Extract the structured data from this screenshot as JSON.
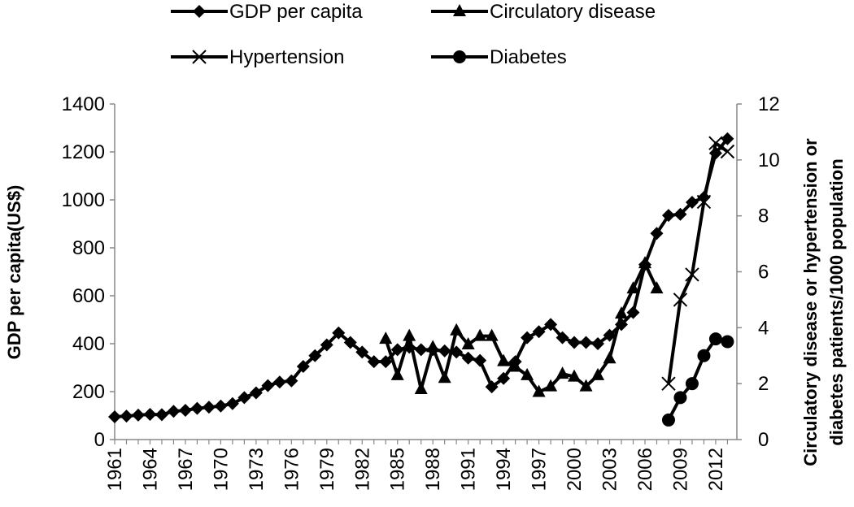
{
  "chart_data": {
    "type": "line",
    "x_ticks": [
      "1961",
      "1964",
      "1967",
      "1970",
      "1973",
      "1976",
      "1979",
      "1982",
      "1985",
      "1988",
      "1991",
      "1994",
      "1997",
      "2000",
      "2003",
      "2006",
      "2009",
      "2012"
    ],
    "y_left": {
      "label": "GDP per capita(US$)",
      "range": [
        0,
        1400
      ],
      "ticks": [
        "0",
        "200",
        "400",
        "600",
        "800",
        "1000",
        "1200",
        "1400"
      ]
    },
    "y_right": {
      "label_line1": "Circulatory  disease or hypertension or",
      "label_line2": "diabetes patients/1000 population",
      "range": [
        0,
        12
      ],
      "ticks": [
        "0",
        "2",
        "4",
        "6",
        "8",
        "10",
        "12"
      ]
    },
    "grid": false,
    "legend_position": "top",
    "series": [
      {
        "name": "GDP per capita",
        "marker": "diamond",
        "axis": "left",
        "x": [
          1961,
          1962,
          1963,
          1964,
          1965,
          1966,
          1967,
          1968,
          1969,
          1970,
          1971,
          1972,
          1973,
          1974,
          1975,
          1976,
          1977,
          1978,
          1979,
          1980,
          1981,
          1982,
          1983,
          1984,
          1985,
          1986,
          1987,
          1988,
          1989,
          1990,
          1991,
          1992,
          1993,
          1994,
          1995,
          1996,
          1997,
          1998,
          1999,
          2000,
          2001,
          2002,
          2003,
          2004,
          2005,
          2006,
          2007,
          2008,
          2009,
          2010,
          2011,
          2012,
          2013
        ],
        "y": [
          95,
          98,
          102,
          105,
          104,
          118,
          122,
          130,
          135,
          140,
          150,
          175,
          195,
          225,
          240,
          245,
          305,
          350,
          395,
          445,
          405,
          365,
          325,
          325,
          375,
          385,
          375,
          375,
          370,
          365,
          340,
          330,
          220,
          255,
          325,
          425,
          450,
          480,
          425,
          405,
          405,
          400,
          435,
          480,
          530,
          730,
          860,
          935,
          940,
          990,
          1010,
          1195,
          1255
        ]
      },
      {
        "name": "Circulatory disease",
        "marker": "triangle",
        "axis": "right",
        "x": [
          1984,
          1985,
          1986,
          1987,
          1988,
          1989,
          1990,
          1991,
          1992,
          1993,
          1994,
          1995,
          1996,
          1997,
          1998,
          1999,
          2000,
          2001,
          2002,
          2003,
          2004,
          2005,
          2006,
          2007
        ],
        "y": [
          3.6,
          2.3,
          3.7,
          1.8,
          3.3,
          2.2,
          3.9,
          3.4,
          3.7,
          3.7,
          2.8,
          2.6,
          2.3,
          1.7,
          1.9,
          2.35,
          2.25,
          1.9,
          2.3,
          2.9,
          4.5,
          5.4,
          6.3,
          5.4
        ]
      },
      {
        "name": "Hypertension",
        "marker": "x",
        "axis": "right",
        "x": [
          2008,
          2009,
          2010,
          2011,
          2012,
          2013
        ],
        "y": [
          2.0,
          5.0,
          5.9,
          8.5,
          10.6,
          10.3
        ]
      },
      {
        "name": "Diabetes",
        "marker": "circle",
        "axis": "right",
        "x": [
          2008,
          2009,
          2010,
          2011,
          2012,
          2013
        ],
        "y": [
          0.7,
          1.5,
          2.0,
          3.0,
          3.6,
          3.5
        ]
      }
    ]
  }
}
